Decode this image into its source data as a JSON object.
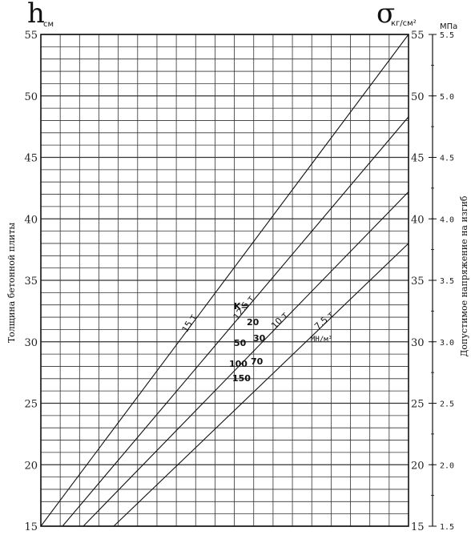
{
  "chart_data": {
    "type": "line",
    "left_axis": {
      "symbol": "h",
      "unit": "см",
      "title": "Толщина бетонной плиты",
      "range": [
        15,
        55
      ],
      "ticks": [
        "15",
        "20",
        "25",
        "30",
        "35",
        "40",
        "45",
        "50",
        "55"
      ]
    },
    "right_axis_sigma": {
      "symbol": "σ",
      "unit": "кг/см²",
      "range": [
        15,
        55
      ],
      "ticks": [
        "15",
        "20",
        "25",
        "30",
        "35",
        "40",
        "45",
        "50",
        "55"
      ]
    },
    "right_axis_mpa": {
      "unit": "МПа",
      "title": "Допустимое напряжение на изгиб",
      "range": [
        1.5,
        5.5
      ],
      "ticks": [
        "1.5",
        "2.0",
        "2.5",
        "3.0",
        "3.5",
        "4.0",
        "4.5",
        "5.0",
        "5.5"
      ]
    },
    "series": [
      {
        "name": "15 т",
        "points": [
          [
            15,
            15
          ],
          [
            55,
            55
          ]
        ]
      },
      {
        "name": "12.5 т",
        "points": [
          [
            15,
            15
          ],
          [
            55,
            48.3
          ]
        ]
      },
      {
        "name": "10 т",
        "points": [
          [
            15,
            15
          ],
          [
            55,
            42.2
          ]
        ]
      },
      {
        "name": "7.5 т",
        "points": [
          [
            15,
            15
          ],
          [
            55,
            38
          ]
        ]
      }
    ],
    "k_labels": {
      "title": "K=",
      "values": [
        "20",
        "30",
        "50",
        "70",
        "100",
        "150"
      ],
      "unit": "МН/м³"
    },
    "grid": true
  }
}
